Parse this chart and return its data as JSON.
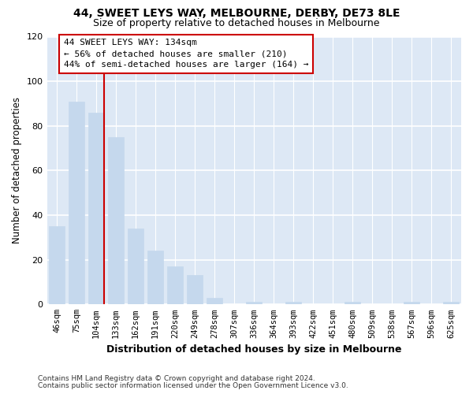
{
  "title": "44, SWEET LEYS WAY, MELBOURNE, DERBY, DE73 8LE",
  "subtitle": "Size of property relative to detached houses in Melbourne",
  "xlabel": "Distribution of detached houses by size in Melbourne",
  "ylabel": "Number of detached properties",
  "bar_color": "#c5d8ed",
  "bins": [
    "46sqm",
    "75sqm",
    "104sqm",
    "133sqm",
    "162sqm",
    "191sqm",
    "220sqm",
    "249sqm",
    "278sqm",
    "307sqm",
    "336sqm",
    "364sqm",
    "393sqm",
    "422sqm",
    "451sqm",
    "480sqm",
    "509sqm",
    "538sqm",
    "567sqm",
    "596sqm",
    "625sqm"
  ],
  "counts": [
    35,
    91,
    86,
    75,
    34,
    24,
    17,
    13,
    3,
    0,
    1,
    0,
    1,
    0,
    0,
    1,
    0,
    0,
    1,
    0,
    1
  ],
  "ylim": [
    0,
    120
  ],
  "yticks": [
    0,
    20,
    40,
    60,
    80,
    100,
    120
  ],
  "vline_color": "#cc0000",
  "annotation_title": "44 SWEET LEYS WAY: 134sqm",
  "annotation_line1": "← 56% of detached houses are smaller (210)",
  "annotation_line2": "44% of semi-detached houses are larger (164) →",
  "annotation_box_color": "#ffffff",
  "annotation_box_edge": "#cc0000",
  "footer1": "Contains HM Land Registry data © Crown copyright and database right 2024.",
  "footer2": "Contains public sector information licensed under the Open Government Licence v3.0.",
  "fig_bg_color": "#ffffff",
  "plot_bg_color": "#dde8f5"
}
